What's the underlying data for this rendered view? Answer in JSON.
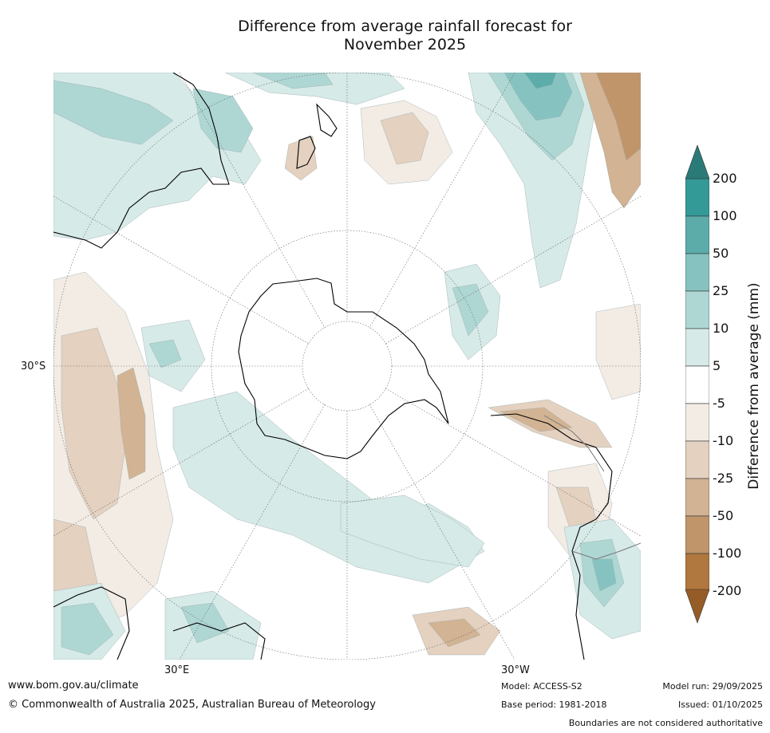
{
  "title": {
    "line1": "Difference from average rainfall forecast for",
    "line2": "November 2025"
  },
  "map": {
    "projection": "south-polar",
    "grid_labels": {
      "lat_30s": "30°S",
      "lon_30e": "30°E",
      "lon_30w": "30°W"
    },
    "fill_colors": {
      "above_200": "#2a7b78",
      "100_to_200": "#339a97",
      "50_to_100": "#5cacaa",
      "25_to_50": "#86c3c0",
      "10_to_25": "#aed7d4",
      "5_to_10": "#d6eae8",
      "neutral": "#ffffff",
      "neg5_to_neg10": "#f2ece5",
      "neg10_to_neg25": "#e4d1c0",
      "neg25_to_neg50": "#d2b393",
      "neg50_to_neg100": "#c0956a",
      "neg100_to_neg200": "#b0783e",
      "below_neg200": "#965c27"
    }
  },
  "colorbar": {
    "label": "Difference from average (mm)",
    "ticks": [
      "200",
      "100",
      "50",
      "25",
      "10",
      "5",
      "-5",
      "-10",
      "-25",
      "-50",
      "-100",
      "-200"
    ],
    "colors": [
      "#339a97",
      "#5cacaa",
      "#86c3c0",
      "#aed7d4",
      "#d6eae8",
      "#ffffff",
      "#f2ece5",
      "#e4d1c0",
      "#d2b393",
      "#c0956a",
      "#b0783e"
    ],
    "top_arrow": "#2a7b78",
    "bottom_arrow": "#965c27"
  },
  "footer": {
    "url": "www.bom.gov.au/climate",
    "copyright": "© Commonwealth of Australia 2025, Australian Bureau of Meteorology",
    "model": "Model: ACCESS-S2",
    "base_period": "Base period: 1981-2018",
    "model_run": "Model run: 29/09/2025",
    "issued": "Issued: 01/10/2025",
    "disclaimer": "Boundaries are not considered authoritative"
  }
}
